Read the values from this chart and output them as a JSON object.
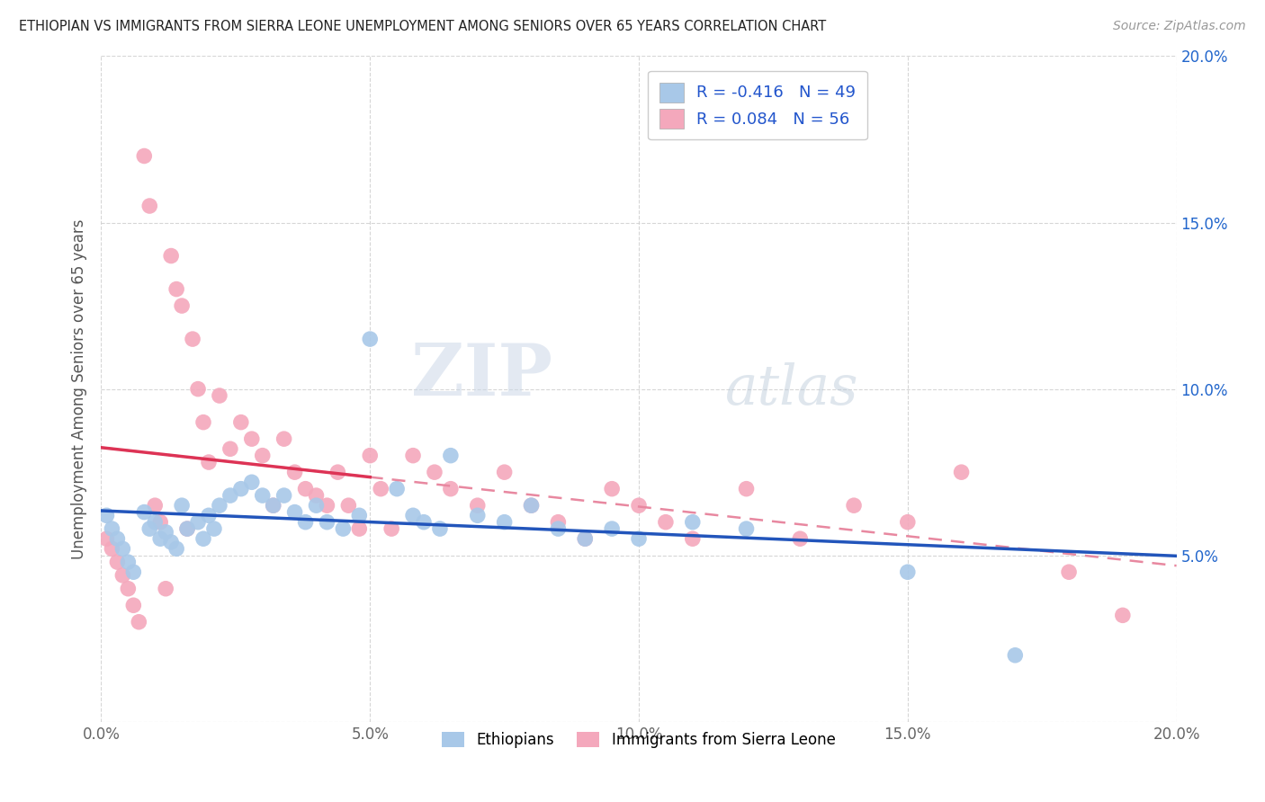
{
  "title": "ETHIOPIAN VS IMMIGRANTS FROM SIERRA LEONE UNEMPLOYMENT AMONG SENIORS OVER 65 YEARS CORRELATION CHART",
  "source": "Source: ZipAtlas.com",
  "ylabel": "Unemployment Among Seniors over 65 years",
  "xlim": [
    0.0,
    0.2
  ],
  "ylim": [
    0.0,
    0.2
  ],
  "x_ticks": [
    0.0,
    0.05,
    0.1,
    0.15,
    0.2
  ],
  "y_ticks": [
    0.0,
    0.05,
    0.1,
    0.15,
    0.2
  ],
  "x_tick_labels": [
    "0.0%",
    "5.0%",
    "10.0%",
    "15.0%",
    "20.0%"
  ],
  "y_tick_labels_left": [
    "",
    "",
    "",
    "",
    ""
  ],
  "y_tick_labels_right": [
    "",
    "5.0%",
    "10.0%",
    "15.0%",
    "20.0%"
  ],
  "background_color": "#ffffff",
  "grid_color": "#cccccc",
  "ethiopian_color": "#a8c8e8",
  "sierra_leone_color": "#f4a8bc",
  "ethiopian_R": -0.416,
  "ethiopian_N": 49,
  "sierra_leone_R": 0.084,
  "sierra_leone_N": 56,
  "ethiopian_line_color": "#2255bb",
  "sierra_leone_solid_color": "#dd3355",
  "sierra_leone_dash_color": "#e888a0",
  "watermark_zip": "ZIP",
  "watermark_atlas": "atlas",
  "legend_ethiopians": "Ethiopians",
  "legend_sierra": "Immigrants from Sierra Leone",
  "ethiopian_x": [
    0.001,
    0.002,
    0.003,
    0.004,
    0.005,
    0.006,
    0.008,
    0.009,
    0.01,
    0.011,
    0.012,
    0.013,
    0.014,
    0.015,
    0.016,
    0.018,
    0.019,
    0.02,
    0.021,
    0.022,
    0.024,
    0.026,
    0.028,
    0.03,
    0.032,
    0.034,
    0.036,
    0.038,
    0.04,
    0.042,
    0.045,
    0.048,
    0.05,
    0.055,
    0.058,
    0.06,
    0.063,
    0.065,
    0.07,
    0.075,
    0.08,
    0.085,
    0.09,
    0.095,
    0.1,
    0.11,
    0.12,
    0.15,
    0.17
  ],
  "ethiopian_y": [
    0.062,
    0.058,
    0.055,
    0.052,
    0.048,
    0.045,
    0.063,
    0.058,
    0.06,
    0.055,
    0.057,
    0.054,
    0.052,
    0.065,
    0.058,
    0.06,
    0.055,
    0.062,
    0.058,
    0.065,
    0.068,
    0.07,
    0.072,
    0.068,
    0.065,
    0.068,
    0.063,
    0.06,
    0.065,
    0.06,
    0.058,
    0.062,
    0.115,
    0.07,
    0.062,
    0.06,
    0.058,
    0.08,
    0.062,
    0.06,
    0.065,
    0.058,
    0.055,
    0.058,
    0.055,
    0.06,
    0.058,
    0.045,
    0.02
  ],
  "sierra_leone_x": [
    0.001,
    0.002,
    0.003,
    0.004,
    0.005,
    0.006,
    0.007,
    0.008,
    0.009,
    0.01,
    0.011,
    0.012,
    0.013,
    0.014,
    0.015,
    0.016,
    0.017,
    0.018,
    0.019,
    0.02,
    0.022,
    0.024,
    0.026,
    0.028,
    0.03,
    0.032,
    0.034,
    0.036,
    0.038,
    0.04,
    0.042,
    0.044,
    0.046,
    0.048,
    0.05,
    0.052,
    0.054,
    0.058,
    0.062,
    0.065,
    0.07,
    0.075,
    0.08,
    0.085,
    0.09,
    0.095,
    0.1,
    0.105,
    0.11,
    0.12,
    0.13,
    0.14,
    0.15,
    0.16,
    0.18,
    0.19
  ],
  "sierra_leone_y": [
    0.055,
    0.052,
    0.048,
    0.044,
    0.04,
    0.035,
    0.03,
    0.17,
    0.155,
    0.065,
    0.06,
    0.04,
    0.14,
    0.13,
    0.125,
    0.058,
    0.115,
    0.1,
    0.09,
    0.078,
    0.098,
    0.082,
    0.09,
    0.085,
    0.08,
    0.065,
    0.085,
    0.075,
    0.07,
    0.068,
    0.065,
    0.075,
    0.065,
    0.058,
    0.08,
    0.07,
    0.058,
    0.08,
    0.075,
    0.07,
    0.065,
    0.075,
    0.065,
    0.06,
    0.055,
    0.07,
    0.065,
    0.06,
    0.055,
    0.07,
    0.055,
    0.065,
    0.06,
    0.075,
    0.045,
    0.032
  ]
}
